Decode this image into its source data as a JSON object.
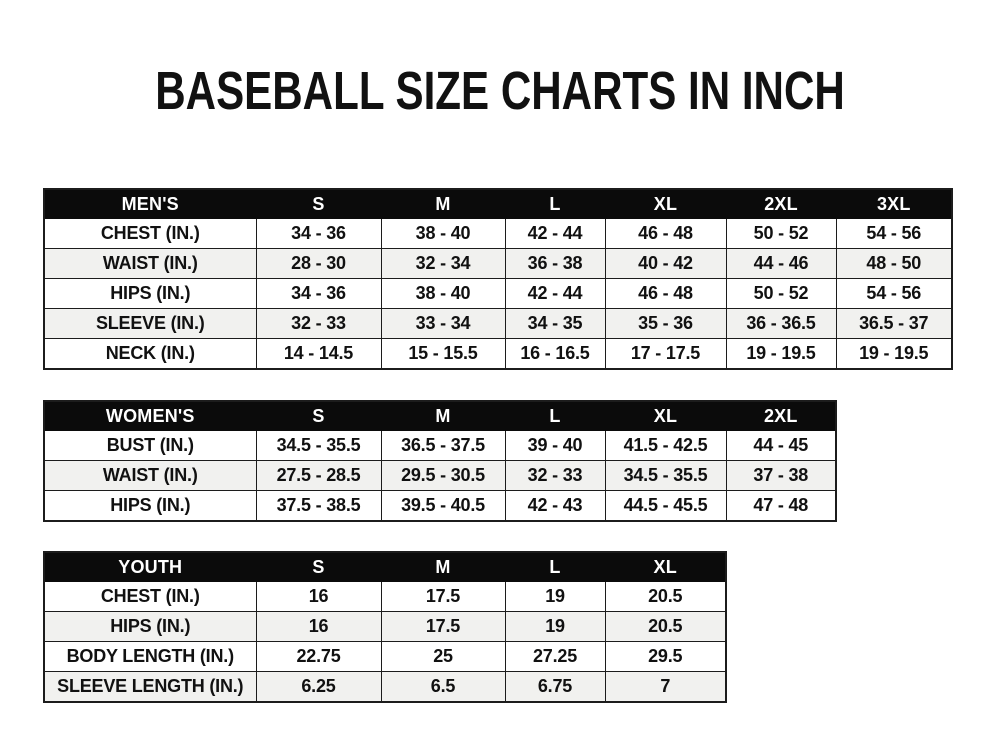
{
  "page_title": "BASEBALL SIZE CHARTS IN INCH",
  "colors": {
    "header_bg": "#0b0b0b",
    "header_text": "#ffffff",
    "row_bg": "#ffffff",
    "row_alt_bg": "#f1f1ef",
    "border": "#1c1c1c",
    "text": "#111111",
    "background": "#ffffff"
  },
  "chart_data": [
    {
      "type": "table",
      "title": "MEN'S",
      "columns": [
        "MEN'S",
        "S",
        "M",
        "L",
        "XL",
        "2XL",
        "3XL"
      ],
      "rows": [
        [
          "CHEST (IN.)",
          "34 - 36",
          "38 - 40",
          "42 - 44",
          "46 - 48",
          "50 - 52",
          "54 - 56"
        ],
        [
          "WAIST (IN.)",
          "28 - 30",
          "32 - 34",
          "36 - 38",
          "40 - 42",
          "44 - 46",
          "48 - 50"
        ],
        [
          "HIPS (IN.)",
          "34 - 36",
          "38 - 40",
          "42 - 44",
          "46 - 48",
          "50 - 52",
          "54 - 56"
        ],
        [
          "SLEEVE (IN.)",
          "32 - 33",
          "33 - 34",
          "34 - 35",
          "35 - 36",
          "36 - 36.5",
          "36.5 - 37"
        ],
        [
          "NECK (IN.)",
          "14 - 14.5",
          "15 - 15.5",
          "16 - 16.5",
          "17 - 17.5",
          "19 - 19.5",
          "19 - 19.5"
        ]
      ]
    },
    {
      "type": "table",
      "title": "WOMEN'S",
      "columns": [
        "WOMEN'S",
        "S",
        "M",
        "L",
        "XL",
        "2XL"
      ],
      "rows": [
        [
          "BUST (IN.)",
          "34.5 - 35.5",
          "36.5 - 37.5",
          "39 - 40",
          "41.5 - 42.5",
          "44 - 45"
        ],
        [
          "WAIST (IN.)",
          "27.5 - 28.5",
          "29.5 - 30.5",
          "32 - 33",
          "34.5 - 35.5",
          "37 - 38"
        ],
        [
          "HIPS (IN.)",
          "37.5 - 38.5",
          "39.5 - 40.5",
          "42 - 43",
          "44.5 - 45.5",
          "47 - 48"
        ]
      ]
    },
    {
      "type": "table",
      "title": "YOUTH",
      "columns": [
        "YOUTH",
        "S",
        "M",
        "L",
        "XL"
      ],
      "rows": [
        [
          "CHEST (IN.)",
          "16",
          "17.5",
          "19",
          "20.5"
        ],
        [
          "HIPS (IN.)",
          "16",
          "17.5",
          "19",
          "20.5"
        ],
        [
          "BODY LENGTH (IN.)",
          "22.75",
          "25",
          "27.25",
          "29.5"
        ],
        [
          "SLEEVE LENGTH (IN.)",
          "6.25",
          "6.5",
          "6.75",
          "7"
        ]
      ]
    }
  ]
}
